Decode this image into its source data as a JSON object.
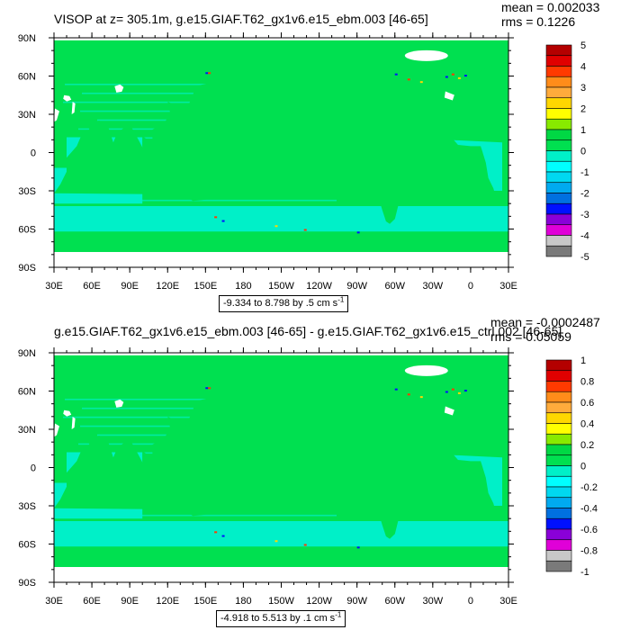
{
  "colors": {
    "land_bg": "#00e050",
    "ocean_fill": "#00f0c8",
    "ice": "#ffffff",
    "frame": "#000000"
  },
  "panels": [
    {
      "title": "VISOP at z= 305.1m, g.e15.GIAF.T62_gx1v6.e15_ebm.003 [46-65]",
      "stats": {
        "mean": "mean = 0.002033",
        "rms": "rms = 0.1226"
      },
      "range_text": "-9.334 to 8.798 by .5 cm s",
      "range_unit_exp": "-1",
      "colorbar_labels": [
        "5",
        "4",
        "3",
        "2",
        "1",
        "0",
        "-1",
        "-2",
        "-3",
        "-4",
        "-5"
      ]
    },
    {
      "title": "g.e15.GIAF.T62_gx1v6.e15_ebm.003 [46-65] - g.e15.GIAF.T62_gx1v6.e15_ctrl.002 [46-65]",
      "stats": {
        "mean": "mean = -0.0002487",
        "rms": "rms = 0.05059"
      },
      "range_text": "-4.918 to 5.513 by .1 cm s",
      "range_unit_exp": "-1",
      "colorbar_labels": [
        "1",
        "0.8",
        "0.6",
        "0.4",
        "0.2",
        "0",
        "-0.2",
        "-0.4",
        "-0.6",
        "-0.8",
        "-1"
      ]
    }
  ],
  "chart_data": [
    {
      "type": "heatmap",
      "title": "VISOP at z= 305.1m, g.e15.GIAF.T62_gx1v6.e15_ebm.003 [46-65]",
      "x_ticks": [
        "30E",
        "60E",
        "90E",
        "120E",
        "150E",
        "180",
        "150W",
        "120W",
        "90W",
        "60W",
        "30W",
        "0",
        "30E"
      ],
      "y_ticks": [
        "90N",
        "60N",
        "30N",
        "0",
        "30S",
        "60S",
        "90S"
      ],
      "x_range_deg": [
        30,
        390
      ],
      "y_range_deg": [
        -90,
        90
      ],
      "colorbar_levels": [
        5,
        4,
        3,
        2,
        1,
        0,
        -1,
        -2,
        -3,
        -4,
        -5
      ],
      "colorbar_colors": [
        "#b40000",
        "#e00000",
        "#ff3a00",
        "#ff8c1a",
        "#ffab3c",
        "#ffd700",
        "#ffff00",
        "#88ea00",
        "#00d844",
        "#00e050",
        "#00f0c8",
        "#00ffff",
        "#00d8f0",
        "#00aaf0",
        "#0070e0",
        "#0010ff",
        "#8a00d8",
        "#e000d8",
        "#c8c8c8",
        "#7a7a7a"
      ],
      "mean": 0.002033,
      "rms": 0.1226,
      "contour_min": -9.334,
      "contour_max": 8.798,
      "contour_interval": 0.5,
      "units": "cm s-1"
    },
    {
      "type": "heatmap",
      "title": "g.e15.GIAF.T62_gx1v6.e15_ebm.003 [46-65] - g.e15.GIAF.T62_gx1v6.e15_ctrl.002 [46-65]",
      "x_ticks": [
        "30E",
        "60E",
        "90E",
        "120E",
        "150E",
        "180",
        "150W",
        "120W",
        "90W",
        "60W",
        "30W",
        "0",
        "30E"
      ],
      "y_ticks": [
        "90N",
        "60N",
        "30N",
        "0",
        "30S",
        "60S",
        "90S"
      ],
      "x_range_deg": [
        30,
        390
      ],
      "y_range_deg": [
        -90,
        90
      ],
      "colorbar_levels": [
        1,
        0.8,
        0.6,
        0.4,
        0.2,
        0,
        -0.2,
        -0.4,
        -0.6,
        -0.8,
        -1
      ],
      "colorbar_colors": [
        "#b40000",
        "#e00000",
        "#ff3a00",
        "#ff8c1a",
        "#ffab3c",
        "#ffd700",
        "#ffff00",
        "#88ea00",
        "#00d844",
        "#00e050",
        "#00f0c8",
        "#00ffff",
        "#00d8f0",
        "#00aaf0",
        "#0070e0",
        "#0010ff",
        "#8a00d8",
        "#e000d8",
        "#c8c8c8",
        "#7a7a7a"
      ],
      "mean": -0.0002487,
      "rms": 0.05059,
      "contour_min": -4.918,
      "contour_max": 5.513,
      "contour_interval": 0.1,
      "units": "cm s-1"
    }
  ]
}
